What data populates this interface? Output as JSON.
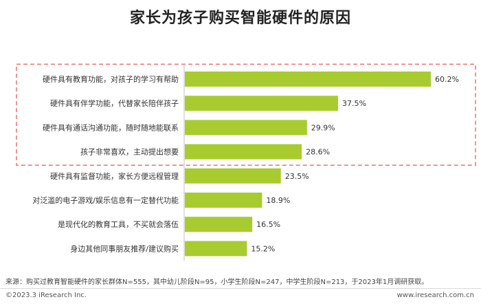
{
  "title": "家长为孩子购买智能硬件的原因",
  "chart_data": {
    "type": "bar",
    "orientation": "horizontal",
    "unit": "%",
    "categories": [
      "硬件具有教育功能，对孩子的学习有帮助",
      "硬件具有伴学功能，代替家长陪伴孩子",
      "硬件具有通话沟通功能，随时随地能联系",
      "孩子非常喜欢，主动提出想要",
      "硬件具有监督功能，家长方便远程管理",
      "对泛滥的电子游戏/娱乐信息有一定替代功能",
      "是现代化的教育工具，不买就会落伍",
      "身边其他同事朋友推荐/建议购买"
    ],
    "values": [
      60.2,
      37.5,
      29.9,
      28.6,
      23.5,
      18.9,
      16.5,
      15.2
    ],
    "value_labels": [
      "60.2%",
      "37.5%",
      "29.9%",
      "28.6%",
      "23.5%",
      "18.9%",
      "16.5%",
      "15.2%"
    ],
    "xlim": [
      0,
      60.2
    ],
    "highlighted_categories": 4,
    "bar_color": "#a8cc2f",
    "highlight_border_color": "#e8736f",
    "grid": false,
    "legend": "none"
  },
  "source": "来源：购买过教育智能硬件的家长群体N=555，其中幼儿阶段N=95，小学生阶段N=247，中学生阶段N=213，于2023年1月调研获取。",
  "footer": {
    "copyright": "©2023.3 iResearch Inc.",
    "website": "www.iresearch.com.cn"
  }
}
